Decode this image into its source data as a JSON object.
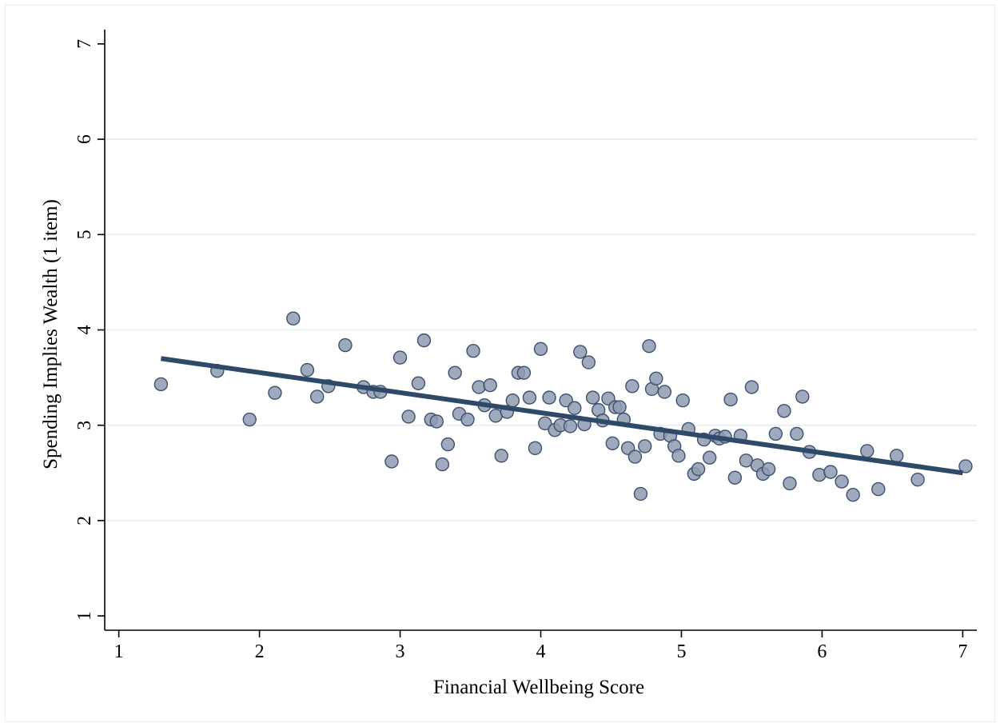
{
  "chart_data": {
    "type": "scatter",
    "title": "",
    "xlabel": "Financial Wellbeing Score",
    "ylabel": "Spending Implies Wealth (1 item)",
    "xlim": [
      0.9,
      7.1
    ],
    "ylim": [
      0.85,
      7.15
    ],
    "x_ticks": [
      1,
      2,
      3,
      4,
      5,
      6,
      7
    ],
    "y_ticks": [
      1,
      2,
      3,
      4,
      5,
      6,
      7
    ],
    "grid": "horizontal",
    "legend": "none",
    "colors": {
      "marker_fill": "#8e9bb0",
      "marker_edge": "#3e5070",
      "fit_line": "#2f4a68",
      "grid": "#e9f0f2"
    },
    "fit_line": {
      "x": [
        1.3,
        7.0
      ],
      "y": [
        3.7,
        2.5
      ]
    },
    "points": [
      [
        1.3,
        3.43
      ],
      [
        1.7,
        3.57
      ],
      [
        1.93,
        3.06
      ],
      [
        2.11,
        3.34
      ],
      [
        2.24,
        4.12
      ],
      [
        2.34,
        3.58
      ],
      [
        2.41,
        3.3
      ],
      [
        2.49,
        3.41
      ],
      [
        2.61,
        3.84
      ],
      [
        2.74,
        3.4
      ],
      [
        2.81,
        3.35
      ],
      [
        2.86,
        3.35
      ],
      [
        2.94,
        2.62
      ],
      [
        3.0,
        3.71
      ],
      [
        3.06,
        3.09
      ],
      [
        3.13,
        3.44
      ],
      [
        3.17,
        3.89
      ],
      [
        3.22,
        3.06
      ],
      [
        3.26,
        3.04
      ],
      [
        3.3,
        2.59
      ],
      [
        3.34,
        2.8
      ],
      [
        3.39,
        3.55
      ],
      [
        3.42,
        3.12
      ],
      [
        3.48,
        3.06
      ],
      [
        3.52,
        3.78
      ],
      [
        3.56,
        3.4
      ],
      [
        3.6,
        3.21
      ],
      [
        3.64,
        3.42
      ],
      [
        3.68,
        3.1
      ],
      [
        3.72,
        2.68
      ],
      [
        3.76,
        3.14
      ],
      [
        3.8,
        3.26
      ],
      [
        3.84,
        3.55
      ],
      [
        3.88,
        3.55
      ],
      [
        3.92,
        3.29
      ],
      [
        3.96,
        2.76
      ],
      [
        4.0,
        3.8
      ],
      [
        4.03,
        3.02
      ],
      [
        4.06,
        3.29
      ],
      [
        4.1,
        2.95
      ],
      [
        4.14,
        3.0
      ],
      [
        4.18,
        3.26
      ],
      [
        4.21,
        2.99
      ],
      [
        4.24,
        3.18
      ],
      [
        4.28,
        3.77
      ],
      [
        4.31,
        3.01
      ],
      [
        4.34,
        3.66
      ],
      [
        4.37,
        3.29
      ],
      [
        4.41,
        3.16
      ],
      [
        4.44,
        3.05
      ],
      [
        4.48,
        3.28
      ],
      [
        4.51,
        2.81
      ],
      [
        4.53,
        3.19
      ],
      [
        4.56,
        3.19
      ],
      [
        4.59,
        3.06
      ],
      [
        4.62,
        2.76
      ],
      [
        4.65,
        3.41
      ],
      [
        4.67,
        2.67
      ],
      [
        4.71,
        2.28
      ],
      [
        4.74,
        2.78
      ],
      [
        4.77,
        3.83
      ],
      [
        4.79,
        3.38
      ],
      [
        4.82,
        3.49
      ],
      [
        4.85,
        2.91
      ],
      [
        4.88,
        3.35
      ],
      [
        4.92,
        2.89
      ],
      [
        4.95,
        2.78
      ],
      [
        4.98,
        2.68
      ],
      [
        5.01,
        3.26
      ],
      [
        5.05,
        2.96
      ],
      [
        5.09,
        2.49
      ],
      [
        5.12,
        2.54
      ],
      [
        5.16,
        2.85
      ],
      [
        5.2,
        2.66
      ],
      [
        5.24,
        2.89
      ],
      [
        5.27,
        2.86
      ],
      [
        5.31,
        2.88
      ],
      [
        5.35,
        3.27
      ],
      [
        5.38,
        2.45
      ],
      [
        5.42,
        2.89
      ],
      [
        5.46,
        2.63
      ],
      [
        5.5,
        3.4
      ],
      [
        5.54,
        2.58
      ],
      [
        5.58,
        2.49
      ],
      [
        5.62,
        2.54
      ],
      [
        5.67,
        2.91
      ],
      [
        5.73,
        3.15
      ],
      [
        5.77,
        2.39
      ],
      [
        5.82,
        2.91
      ],
      [
        5.86,
        3.3
      ],
      [
        5.91,
        2.72
      ],
      [
        5.98,
        2.48
      ],
      [
        6.06,
        2.51
      ],
      [
        6.14,
        2.41
      ],
      [
        6.22,
        2.27
      ],
      [
        6.32,
        2.73
      ],
      [
        6.4,
        2.33
      ],
      [
        6.53,
        2.68
      ],
      [
        6.68,
        2.43
      ],
      [
        7.02,
        2.57
      ]
    ]
  }
}
